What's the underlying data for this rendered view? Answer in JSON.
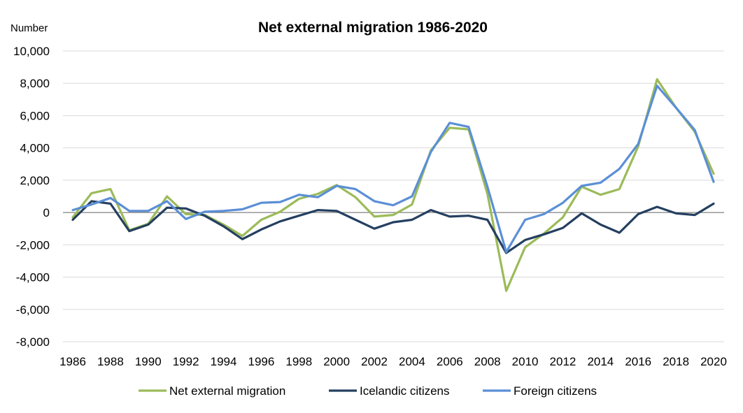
{
  "chart_data": {
    "type": "line",
    "title": "Net external migration 1986-2020",
    "ylabel": "Number",
    "xlabel": "",
    "x": [
      1986,
      1987,
      1988,
      1989,
      1990,
      1991,
      1992,
      1993,
      1994,
      1995,
      1996,
      1997,
      1998,
      1999,
      2000,
      2001,
      2002,
      2003,
      2004,
      2005,
      2006,
      2007,
      2008,
      2009,
      2010,
      2011,
      2012,
      2013,
      2014,
      2015,
      2016,
      2017,
      2018,
      2019,
      2020
    ],
    "xticks": [
      "1986",
      "1988",
      "1990",
      "1992",
      "1994",
      "1996",
      "1998",
      "2000",
      "2002",
      "2004",
      "2006",
      "2008",
      "2010",
      "2012",
      "2014",
      "2016",
      "2018",
      "2020"
    ],
    "ylim": [
      -8000,
      10000
    ],
    "yticks": [
      "-8,000",
      "-6,000",
      "-4,000",
      "-2,000",
      "0",
      "2,000",
      "4,000",
      "6,000",
      "8,000",
      "10,000"
    ],
    "grid": true,
    "legend_position": "bottom",
    "series": [
      {
        "name": "Net external migration",
        "color": "#9bbb59",
        "values": [
          -300,
          1200,
          1450,
          -1100,
          -700,
          1000,
          -100,
          -150,
          -750,
          -1450,
          -450,
          50,
          850,
          1150,
          1700,
          950,
          -250,
          -150,
          500,
          3850,
          5250,
          5150,
          1150,
          -4850,
          -2150,
          -1300,
          -300,
          1600,
          1100,
          1450,
          4100,
          8250,
          6500,
          5000,
          2400
        ]
      },
      {
        "name": "Icelandic citizens",
        "color": "#243f60",
        "values": [
          -450,
          700,
          550,
          -1150,
          -750,
          300,
          250,
          -200,
          -850,
          -1650,
          -1050,
          -550,
          -200,
          150,
          100,
          -450,
          -1000,
          -600,
          -450,
          150,
          -250,
          -200,
          -450,
          -2500,
          -1700,
          -1350,
          -950,
          -50,
          -750,
          -1250,
          -100,
          350,
          -50,
          -150,
          550
        ]
      },
      {
        "name": "Foreign citizens",
        "color": "#5b8fd6",
        "values": [
          150,
          500,
          900,
          100,
          100,
          700,
          -400,
          50,
          100,
          200,
          600,
          650,
          1100,
          950,
          1650,
          1450,
          700,
          450,
          1000,
          3750,
          5550,
          5300,
          1600,
          -2450,
          -450,
          -100,
          600,
          1650,
          1850,
          2700,
          4250,
          7850,
          6500,
          5100,
          1900
        ]
      }
    ]
  }
}
